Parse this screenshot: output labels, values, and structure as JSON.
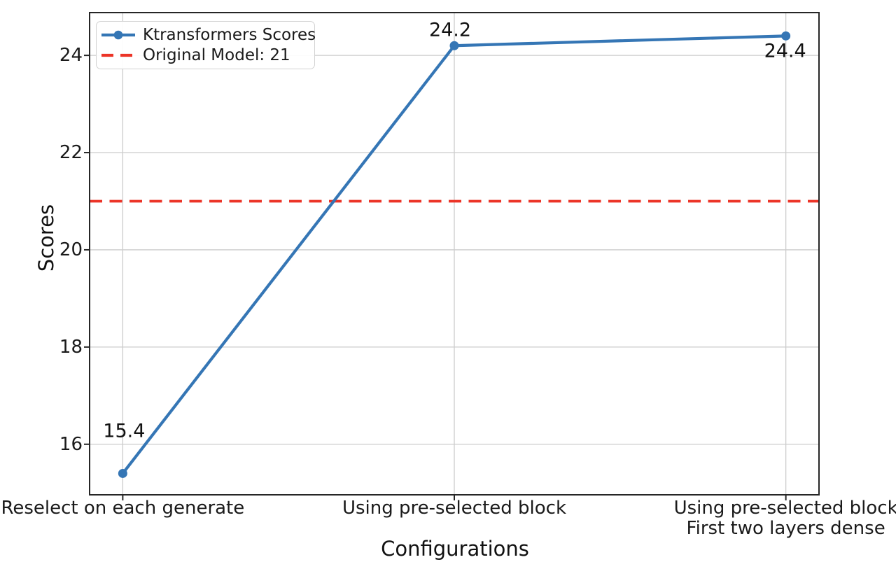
{
  "figure": {
    "background": "#ffffff",
    "text_color": "#1a1a1a",
    "grid_color": "#cccccc",
    "spine_color": "#262626"
  },
  "legend": {
    "items": [
      {
        "label": "Ktransformers Scores",
        "color": "#3576b5",
        "style": "solid-marker"
      },
      {
        "label": "Original Model: 21",
        "color": "#ec3427",
        "style": "dashed"
      }
    ]
  },
  "chart_data": {
    "type": "line",
    "title": "",
    "xlabel": "Configurations",
    "ylabel": "Scores",
    "categories": [
      "Reselect on each generate",
      "Using pre-selected block",
      "Using pre-selected block\nFirst two layers dense"
    ],
    "series": [
      {
        "name": "Ktransformers Scores",
        "values": [
          15.4,
          24.2,
          24.4
        ],
        "data_labels": [
          "15.4",
          "24.2",
          "24.4"
        ],
        "color": "#3576b5",
        "marker": "circle"
      }
    ],
    "reference_line": {
      "label": "Original Model: 21",
      "value": 21,
      "color": "#ec3427",
      "style": "dashed"
    },
    "yticks": [
      16,
      18,
      20,
      22,
      24
    ],
    "ylim": [
      14.96,
      24.88
    ],
    "grid": true,
    "legend_position": "upper-left"
  }
}
